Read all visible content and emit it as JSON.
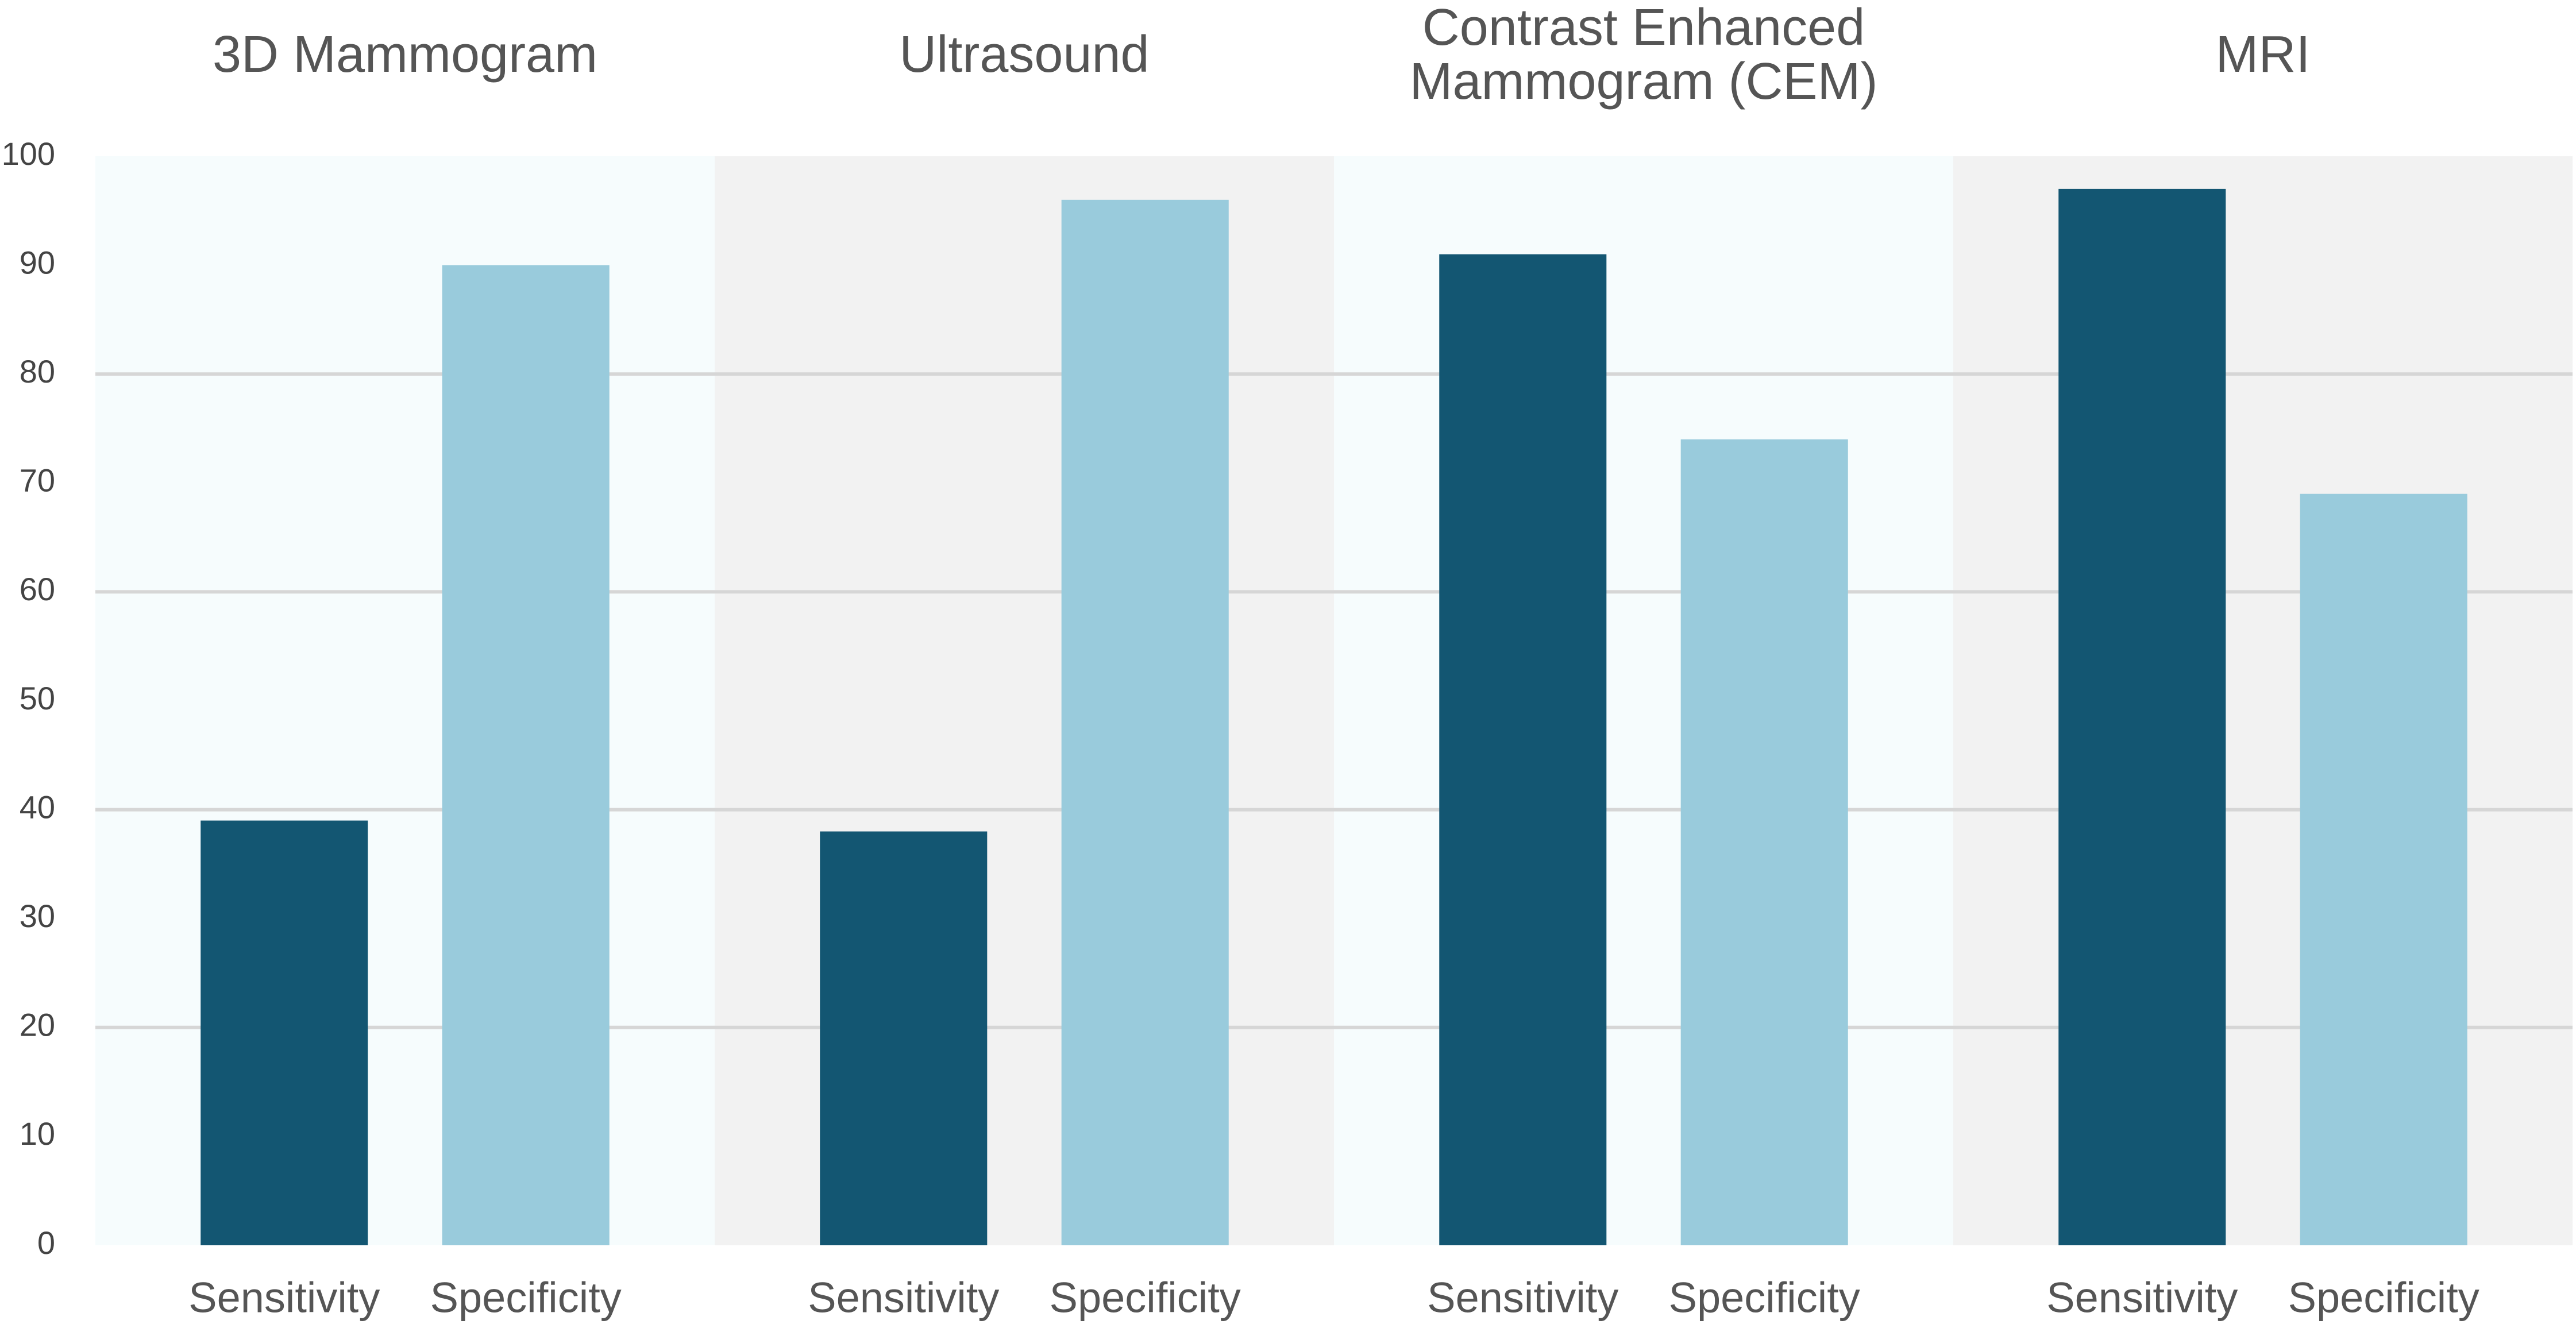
{
  "chart_data": {
    "type": "bar",
    "categories": [
      "3D Mammogram",
      "Ultrasound",
      "Contrast Enhanced Mammogram (CEM)",
      "MRI"
    ],
    "series": [
      {
        "name": "Sensitivity",
        "color": "#135672",
        "values": [
          39,
          38,
          91,
          97
        ]
      },
      {
        "name": "Specificity",
        "color": "#99cbdc",
        "values": [
          90,
          96,
          74,
          69
        ]
      }
    ],
    "ylim": [
      0,
      100
    ],
    "yticks": [
      0,
      10,
      20,
      30,
      40,
      50,
      60,
      70,
      80,
      90,
      100
    ],
    "gridlines": [
      20,
      40,
      60,
      80
    ],
    "panel_colors": [
      "#f6fcfd",
      "#f2f2f2"
    ]
  }
}
